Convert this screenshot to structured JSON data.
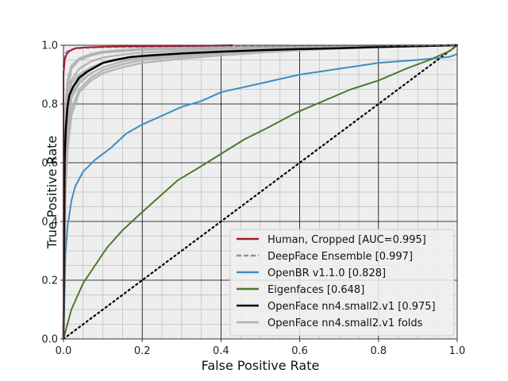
{
  "chart_data": {
    "type": "line",
    "title": "",
    "xlabel": "False Positive Rate",
    "ylabel": "True Positive Rate",
    "xlim": [
      0,
      1
    ],
    "ylim": [
      0,
      1
    ],
    "xticks": [
      0.0,
      0.2,
      0.4,
      0.6,
      0.8,
      1.0
    ],
    "yticks": [
      0.0,
      0.2,
      0.4,
      0.6,
      0.8,
      1.0
    ],
    "xtick_labels": [
      "0.0",
      "0.2",
      "0.4",
      "0.6",
      "0.8",
      "1.0"
    ],
    "ytick_labels": [
      "0.0",
      "0.2",
      "0.4",
      "0.6",
      "0.8",
      "1.0"
    ],
    "grid": true,
    "minor_grid": true,
    "background": "#eeeeee",
    "legend_position": "lower-right",
    "series": [
      {
        "name": "Human, Cropped [AUC=0.995]",
        "color": "#a51c30",
        "dash": "solid",
        "width": 2,
        "x": [
          0,
          0.0,
          0.003,
          0.008,
          0.015,
          0.03,
          0.06,
          0.1,
          0.15,
          0.25,
          0.35,
          0.43
        ],
        "y": [
          0,
          0.9,
          0.95,
          0.97,
          0.98,
          0.99,
          0.993,
          0.995,
          0.996,
          0.997,
          0.998,
          1.0
        ]
      },
      {
        "name": "DeepFace Ensemble [0.997]",
        "color": "#9b87ad",
        "dash": "dashed",
        "width": 2,
        "x": [
          0,
          0.0,
          0.002,
          0.006,
          0.015,
          0.04,
          0.1,
          0.2,
          0.4,
          0.6,
          0.8,
          1.0
        ],
        "y": [
          0,
          0.93,
          0.96,
          0.975,
          0.985,
          0.99,
          0.993,
          0.995,
          0.997,
          0.998,
          0.999,
          1.0
        ]
      },
      {
        "name": "OpenBR v1.1.0 [0.828]",
        "color": "#3a8fc2",
        "dash": "solid",
        "width": 2,
        "x": [
          0,
          0.005,
          0.01,
          0.02,
          0.03,
          0.05,
          0.08,
          0.12,
          0.16,
          0.2,
          0.25,
          0.3,
          0.35,
          0.4,
          0.5,
          0.6,
          0.7,
          0.8,
          0.9,
          0.98,
          1.0
        ],
        "y": [
          0,
          0.29,
          0.38,
          0.47,
          0.52,
          0.57,
          0.61,
          0.65,
          0.7,
          0.73,
          0.76,
          0.79,
          0.81,
          0.84,
          0.87,
          0.9,
          0.92,
          0.94,
          0.95,
          0.96,
          0.97
        ]
      },
      {
        "name": "Eigenfaces [0.648]",
        "color": "#4a7a2a",
        "dash": "solid",
        "width": 2,
        "x": [
          0,
          0.02,
          0.05,
          0.08,
          0.11,
          0.15,
          0.19,
          0.24,
          0.29,
          0.34,
          0.4,
          0.46,
          0.52,
          0.59,
          0.66,
          0.73,
          0.8,
          0.87,
          0.93,
          0.98,
          1.0
        ],
        "y": [
          0,
          0.1,
          0.19,
          0.25,
          0.31,
          0.37,
          0.42,
          0.48,
          0.54,
          0.58,
          0.63,
          0.68,
          0.72,
          0.77,
          0.81,
          0.85,
          0.88,
          0.92,
          0.95,
          0.98,
          1.0
        ]
      },
      {
        "name": "OpenFace nn4.small2.v1 [0.975]",
        "color": "#000000",
        "dash": "solid",
        "width": 2.5,
        "x": [
          0,
          0.003,
          0.006,
          0.01,
          0.015,
          0.025,
          0.04,
          0.06,
          0.08,
          0.1,
          0.13,
          0.17,
          0.22,
          0.3,
          0.4,
          0.5,
          0.6,
          0.7,
          0.8,
          0.9,
          1.0
        ],
        "y": [
          0,
          0.62,
          0.72,
          0.79,
          0.83,
          0.86,
          0.89,
          0.91,
          0.925,
          0.94,
          0.95,
          0.96,
          0.965,
          0.972,
          0.978,
          0.983,
          0.987,
          0.99,
          0.994,
          0.997,
          1.0
        ]
      }
    ],
    "fold_series": {
      "name": "OpenFace nn4.small2.v1 folds",
      "color": "#b0b0b0",
      "width": 2.5,
      "x": [
        0,
        0.005,
        0.01,
        0.02,
        0.04,
        0.07,
        0.1,
        0.15,
        0.2,
        0.3,
        0.4,
        0.5,
        0.6,
        0.7,
        0.8,
        0.9,
        1.0
      ],
      "curves": [
        [
          0,
          0.72,
          0.84,
          0.92,
          0.95,
          0.965,
          0.975,
          0.98,
          0.985,
          0.988,
          0.99,
          0.993,
          0.995,
          0.997,
          0.998,
          0.999,
          1.0
        ],
        [
          0,
          0.62,
          0.74,
          0.83,
          0.88,
          0.92,
          0.94,
          0.955,
          0.965,
          0.975,
          0.98,
          0.985,
          0.99,
          0.993,
          0.995,
          0.998,
          1.0
        ],
        [
          0,
          0.55,
          0.68,
          0.78,
          0.85,
          0.89,
          0.915,
          0.935,
          0.95,
          0.962,
          0.972,
          0.98,
          0.986,
          0.99,
          0.994,
          0.997,
          1.0
        ],
        [
          0,
          0.66,
          0.79,
          0.88,
          0.92,
          0.945,
          0.958,
          0.968,
          0.975,
          0.982,
          0.986,
          0.989,
          0.992,
          0.995,
          0.997,
          0.999,
          1.0
        ],
        [
          0,
          0.5,
          0.64,
          0.76,
          0.84,
          0.88,
          0.905,
          0.925,
          0.94,
          0.955,
          0.965,
          0.975,
          0.983,
          0.989,
          0.994,
          0.997,
          1.0
        ],
        [
          0,
          0.7,
          0.8,
          0.87,
          0.9,
          0.925,
          0.94,
          0.952,
          0.962,
          0.97,
          0.977,
          0.983,
          0.988,
          0.992,
          0.995,
          0.998,
          1.0
        ],
        [
          0,
          0.78,
          0.88,
          0.93,
          0.955,
          0.97,
          0.978,
          0.984,
          0.988,
          0.991,
          0.993,
          0.995,
          0.997,
          0.998,
          0.999,
          0.999,
          1.0
        ],
        [
          0,
          0.6,
          0.72,
          0.82,
          0.87,
          0.905,
          0.925,
          0.945,
          0.957,
          0.968,
          0.976,
          0.982,
          0.987,
          0.991,
          0.994,
          0.997,
          1.0
        ]
      ]
    },
    "diagonal": {
      "color": "#000000",
      "dash": "dotted",
      "x": [
        0,
        1
      ],
      "y": [
        0,
        1
      ]
    }
  }
}
